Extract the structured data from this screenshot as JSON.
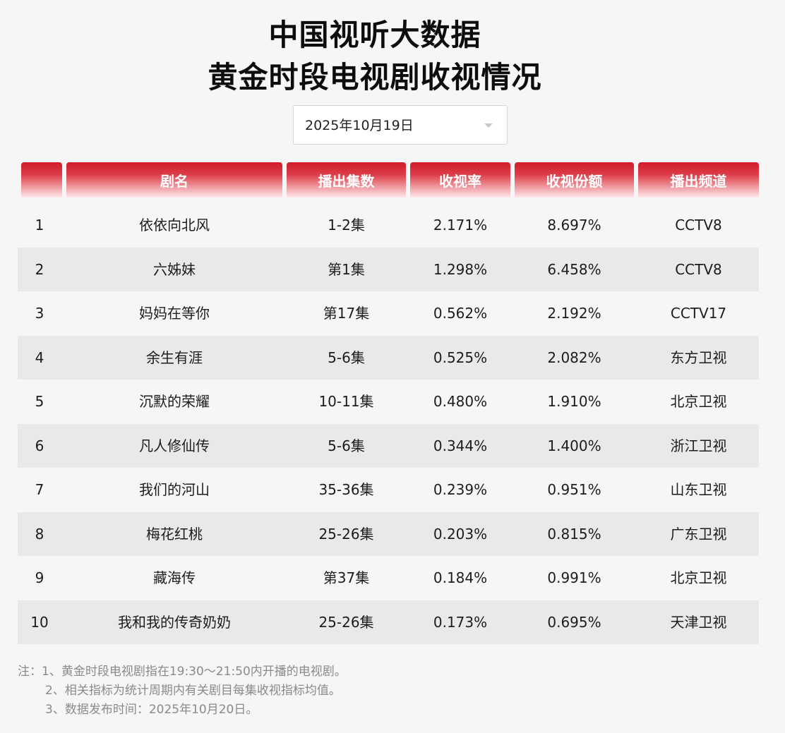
{
  "title_line1": "中国视听大数据",
  "title_line2": "黄金时段电视剧收视情况",
  "date_select": {
    "value": "2025年10月19日"
  },
  "table": {
    "headers": [
      "",
      "剧名",
      "播出集数",
      "收视率",
      "收视份额",
      "播出频道"
    ],
    "rows": [
      {
        "rank": "1",
        "name": "依依向北风",
        "episodes": "1-2集",
        "rating": "2.171%",
        "share": "8.697%",
        "channel": "CCTV8"
      },
      {
        "rank": "2",
        "name": "六姊妹",
        "episodes": "第1集",
        "rating": "1.298%",
        "share": "6.458%",
        "channel": "CCTV8"
      },
      {
        "rank": "3",
        "name": "妈妈在等你",
        "episodes": "第17集",
        "rating": "0.562%",
        "share": "2.192%",
        "channel": "CCTV17"
      },
      {
        "rank": "4",
        "name": "余生有涯",
        "episodes": "5-6集",
        "rating": "0.525%",
        "share": "2.082%",
        "channel": "东方卫视"
      },
      {
        "rank": "5",
        "name": "沉默的荣耀",
        "episodes": "10-11集",
        "rating": "0.480%",
        "share": "1.910%",
        "channel": "北京卫视"
      },
      {
        "rank": "6",
        "name": "凡人修仙传",
        "episodes": "5-6集",
        "rating": "0.344%",
        "share": "1.400%",
        "channel": "浙江卫视"
      },
      {
        "rank": "7",
        "name": "我们的河山",
        "episodes": "35-36集",
        "rating": "0.239%",
        "share": "0.951%",
        "channel": "山东卫视"
      },
      {
        "rank": "8",
        "name": "梅花红桃",
        "episodes": "25-26集",
        "rating": "0.203%",
        "share": "0.815%",
        "channel": "广东卫视"
      },
      {
        "rank": "9",
        "name": "藏海传",
        "episodes": "第37集",
        "rating": "0.184%",
        "share": "0.991%",
        "channel": "北京卫视"
      },
      {
        "rank": "10",
        "name": "我和我的传奇奶奶",
        "episodes": "25-26集",
        "rating": "0.173%",
        "share": "0.695%",
        "channel": "天津卫视"
      }
    ]
  },
  "notes": [
    "注：1、黄金时段电视剧指在19:30～21:50内开播的电视剧。",
    "2、相关指标为统计周期内有关剧目每集收视指标均值。",
    "3、数据发布时间：2025年10月20日。"
  ],
  "colors": {
    "header_red": "#d11c2a",
    "background": "#f6f6f6",
    "row_alt": "#e9e9e9",
    "note_gray": "#8a8a8a"
  }
}
